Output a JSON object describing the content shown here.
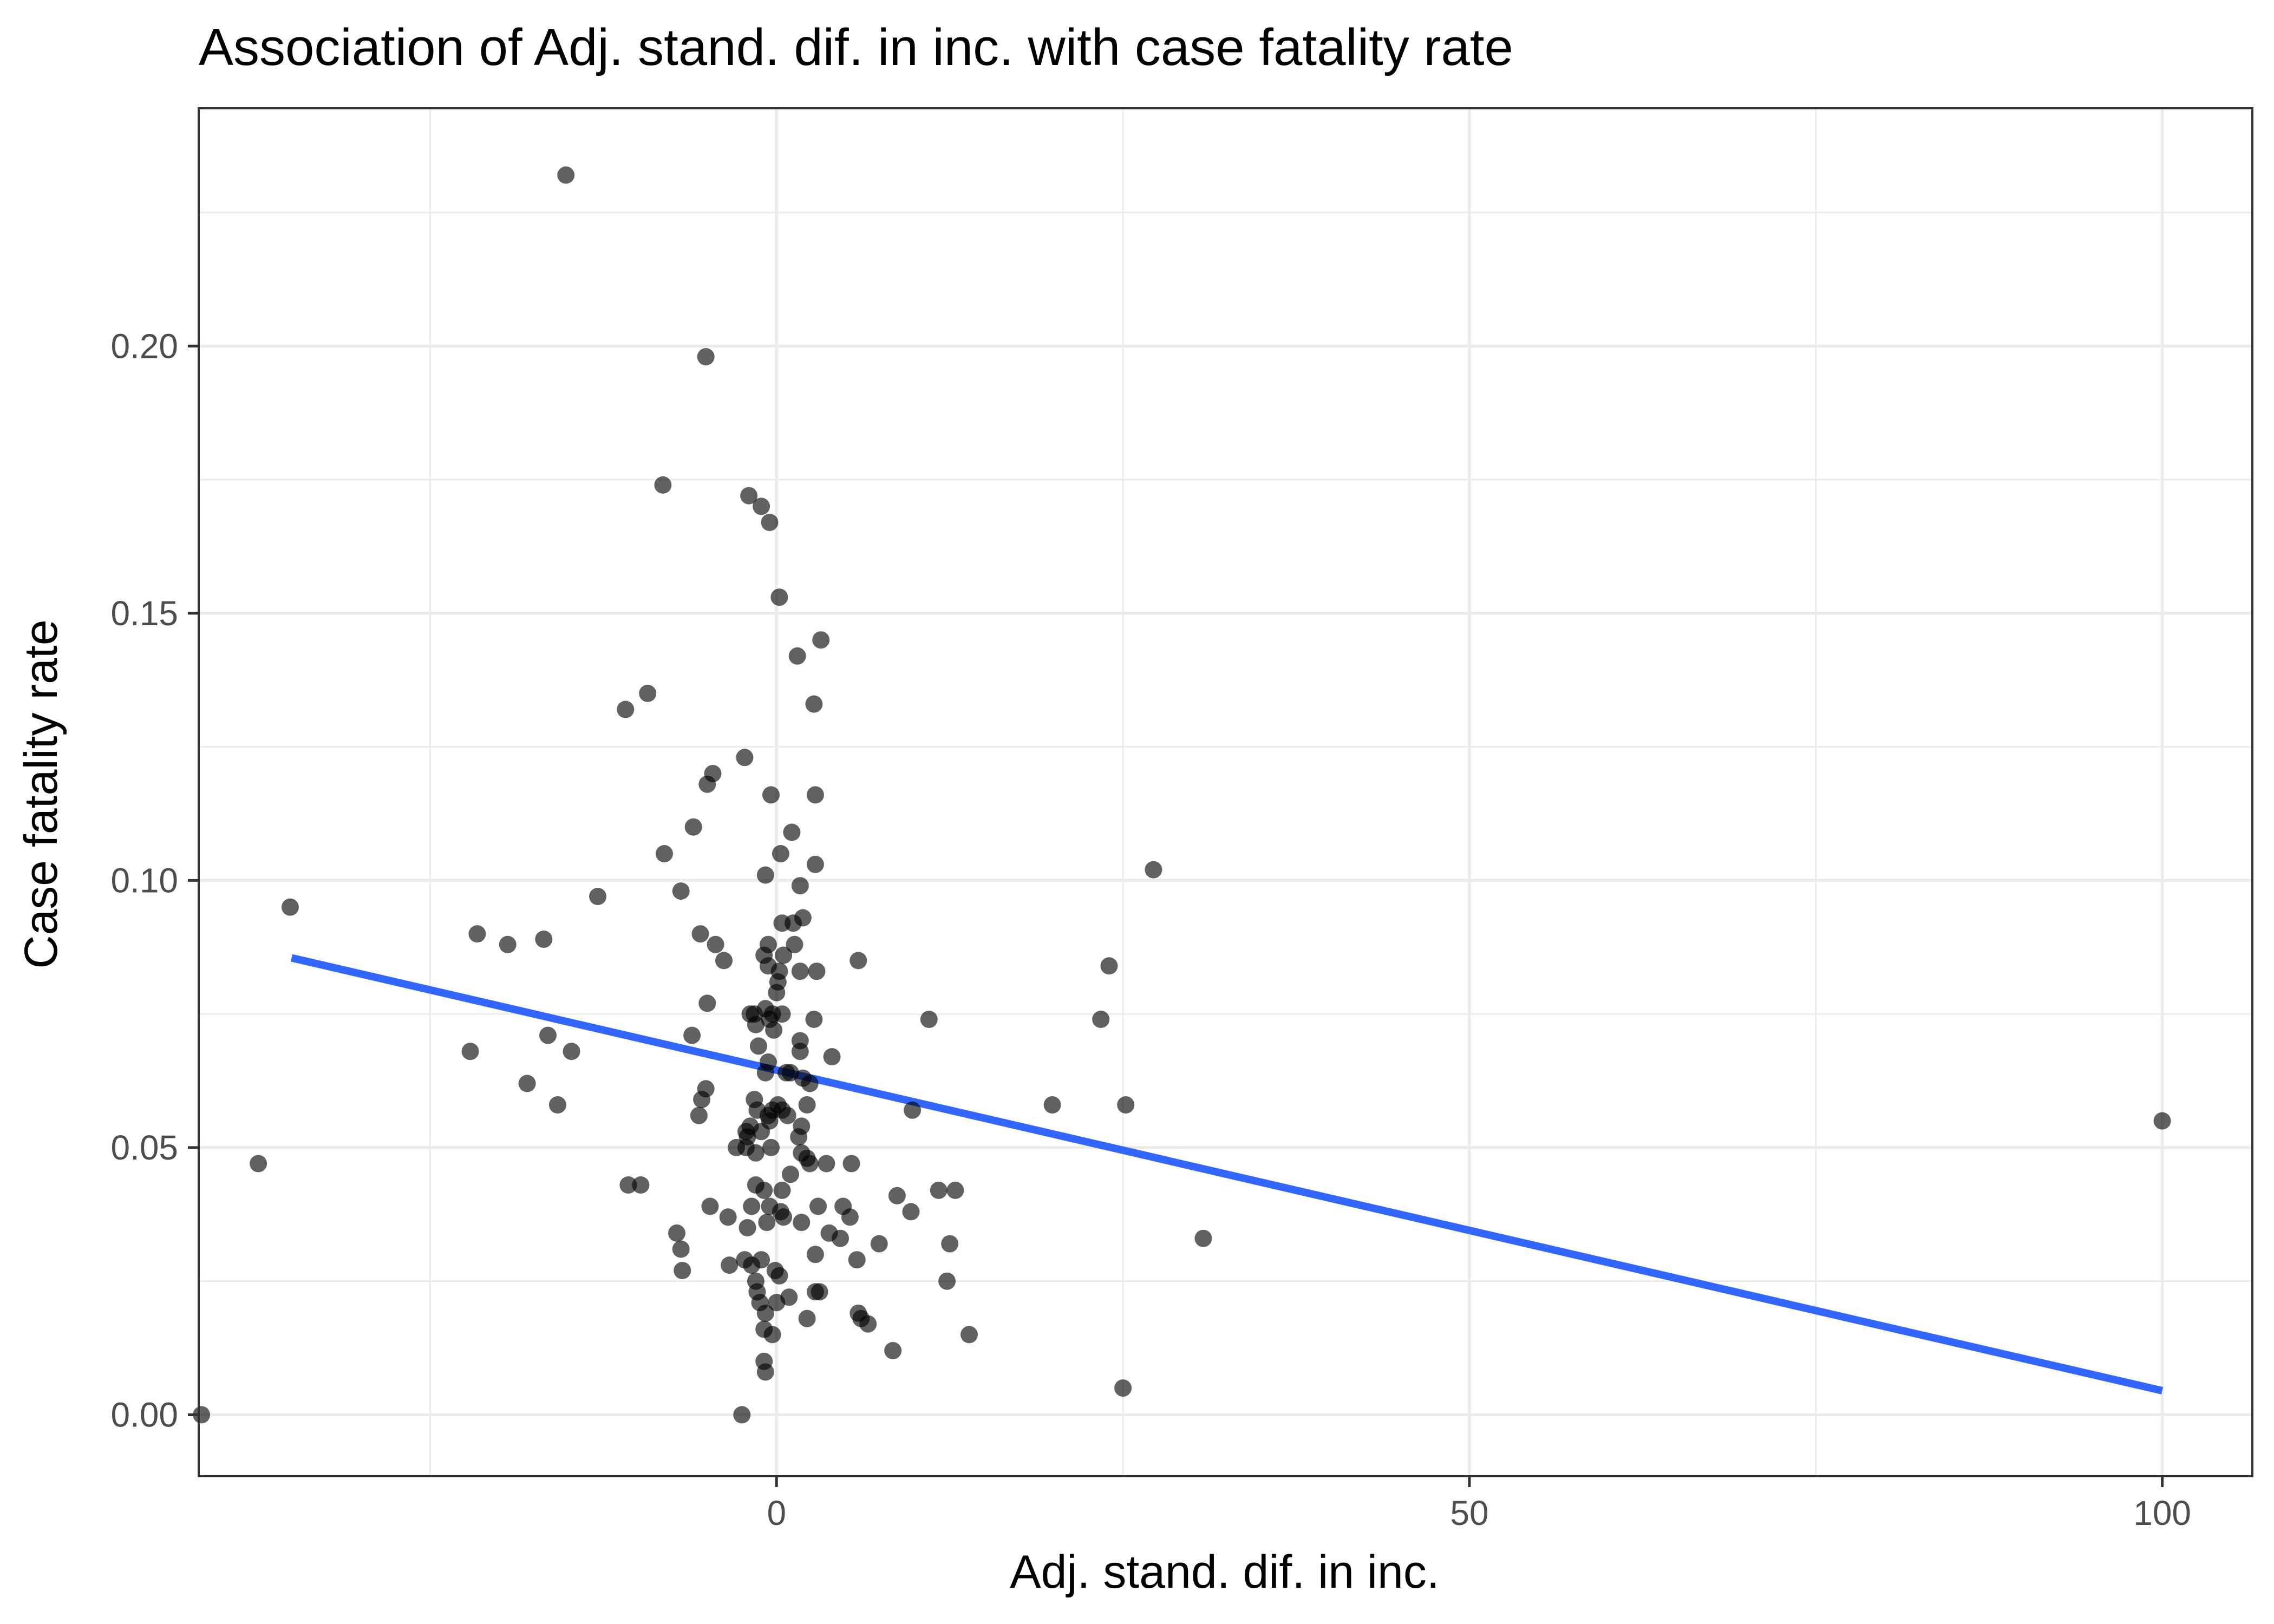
{
  "chart_data": {
    "type": "scatter",
    "title": "Association of Adj. stand. dif. in inc. with case fatality rate",
    "xlabel": "Adj. stand. dif. in inc.",
    "ylabel": "Case fatality rate",
    "xlim": [
      -41.7,
      106.5
    ],
    "ylim": [
      -0.0115,
      0.2445
    ],
    "x_ticks": [
      0,
      50,
      100
    ],
    "x_tick_labels": [
      "0",
      "50",
      "100"
    ],
    "x_minor_ticks": [
      -25,
      25,
      75
    ],
    "y_ticks": [
      0.0,
      0.05,
      0.1,
      0.15,
      0.2
    ],
    "y_tick_labels": [
      "0.00",
      "0.05",
      "0.10",
      "0.15",
      "0.20"
    ],
    "y_minor_ticks": [
      0.025,
      0.075,
      0.125,
      0.175,
      0.225
    ],
    "grid": true,
    "legend": "none",
    "point_color": "#000000",
    "point_opacity": 0.62,
    "fit_color": "#3366ff",
    "fit_line": {
      "x": [
        -35,
        100
      ],
      "y": [
        0.0855,
        0.0045
      ]
    },
    "points": [
      {
        "x": -15.2,
        "y": 0.232
      },
      {
        "x": -5.1,
        "y": 0.198
      },
      {
        "x": -8.2,
        "y": 0.174
      },
      {
        "x": -2,
        "y": 0.172
      },
      {
        "x": -1.1,
        "y": 0.17
      },
      {
        "x": -0.5,
        "y": 0.167
      },
      {
        "x": 0.2,
        "y": 0.153
      },
      {
        "x": 3.2,
        "y": 0.145
      },
      {
        "x": 1.5,
        "y": 0.142
      },
      {
        "x": -9.3,
        "y": 0.135
      },
      {
        "x": -10.9,
        "y": 0.132
      },
      {
        "x": 2.7,
        "y": 0.133
      },
      {
        "x": -2.3,
        "y": 0.123
      },
      {
        "x": -4.6,
        "y": 0.12
      },
      {
        "x": -5,
        "y": 0.118
      },
      {
        "x": -0.4,
        "y": 0.116
      },
      {
        "x": 2.8,
        "y": 0.116
      },
      {
        "x": -6,
        "y": 0.11
      },
      {
        "x": 1.1,
        "y": 0.109
      },
      {
        "x": -8.1,
        "y": 0.105
      },
      {
        "x": 0.3,
        "y": 0.105
      },
      {
        "x": 2.8,
        "y": 0.103
      },
      {
        "x": -0.8,
        "y": 0.101
      },
      {
        "x": 27.2,
        "y": 0.102
      },
      {
        "x": -12.9,
        "y": 0.097
      },
      {
        "x": -6.9,
        "y": 0.098
      },
      {
        "x": 1.7,
        "y": 0.099
      },
      {
        "x": -35.1,
        "y": 0.095
      },
      {
        "x": 1.9,
        "y": 0.093
      },
      {
        "x": 1.2,
        "y": 0.092
      },
      {
        "x": 0.4,
        "y": 0.092
      },
      {
        "x": -21.6,
        "y": 0.09
      },
      {
        "x": -5.5,
        "y": 0.09
      },
      {
        "x": -19.4,
        "y": 0.088
      },
      {
        "x": -16.8,
        "y": 0.089
      },
      {
        "x": -4.4,
        "y": 0.088
      },
      {
        "x": -0.6,
        "y": 0.088
      },
      {
        "x": 1.3,
        "y": 0.088
      },
      {
        "x": -0.9,
        "y": 0.086
      },
      {
        "x": 0.5,
        "y": 0.086
      },
      {
        "x": -3.8,
        "y": 0.085
      },
      {
        "x": 5.9,
        "y": 0.085
      },
      {
        "x": 24,
        "y": 0.084
      },
      {
        "x": -0.6,
        "y": 0.084
      },
      {
        "x": 0.2,
        "y": 0.083
      },
      {
        "x": 1.7,
        "y": 0.083
      },
      {
        "x": 2.9,
        "y": 0.083
      },
      {
        "x": 0.1,
        "y": 0.081
      },
      {
        "x": 0,
        "y": 0.079
      },
      {
        "x": -5,
        "y": 0.077
      },
      {
        "x": -0.8,
        "y": 0.076
      },
      {
        "x": -1.9,
        "y": 0.075
      },
      {
        "x": -1.6,
        "y": 0.075
      },
      {
        "x": -0.3,
        "y": 0.075
      },
      {
        "x": 0.4,
        "y": 0.075
      },
      {
        "x": -0.5,
        "y": 0.074
      },
      {
        "x": 2.7,
        "y": 0.074
      },
      {
        "x": 11,
        "y": 0.074
      },
      {
        "x": 23.4,
        "y": 0.074
      },
      {
        "x": -1.5,
        "y": 0.073
      },
      {
        "x": -0.2,
        "y": 0.072
      },
      {
        "x": -6.1,
        "y": 0.071
      },
      {
        "x": -16.5,
        "y": 0.071
      },
      {
        "x": 1.7,
        "y": 0.07
      },
      {
        "x": -1.3,
        "y": 0.069
      },
      {
        "x": -22.1,
        "y": 0.068
      },
      {
        "x": -14.8,
        "y": 0.068
      },
      {
        "x": 1.7,
        "y": 0.068
      },
      {
        "x": 4,
        "y": 0.067
      },
      {
        "x": -0.6,
        "y": 0.066
      },
      {
        "x": -0.8,
        "y": 0.064
      },
      {
        "x": 1,
        "y": 0.064
      },
      {
        "x": 0.7,
        "y": 0.064
      },
      {
        "x": 1.9,
        "y": 0.063
      },
      {
        "x": -18,
        "y": 0.062
      },
      {
        "x": 2.4,
        "y": 0.062
      },
      {
        "x": -5.1,
        "y": 0.061
      },
      {
        "x": -5.4,
        "y": 0.059
      },
      {
        "x": -1.6,
        "y": 0.059
      },
      {
        "x": 0.1,
        "y": 0.058
      },
      {
        "x": 2.2,
        "y": 0.058
      },
      {
        "x": 19.9,
        "y": 0.058
      },
      {
        "x": 25.2,
        "y": 0.058
      },
      {
        "x": -15.8,
        "y": 0.058
      },
      {
        "x": -1.4,
        "y": 0.057
      },
      {
        "x": -0.3,
        "y": 0.057
      },
      {
        "x": 0.4,
        "y": 0.057
      },
      {
        "x": 9.8,
        "y": 0.057
      },
      {
        "x": 100,
        "y": 0.055
      },
      {
        "x": -0.6,
        "y": 0.056
      },
      {
        "x": 0.8,
        "y": 0.056
      },
      {
        "x": -5.6,
        "y": 0.056
      },
      {
        "x": -0.5,
        "y": 0.055
      },
      {
        "x": -1.9,
        "y": 0.054
      },
      {
        "x": 1.8,
        "y": 0.054
      },
      {
        "x": -2.2,
        "y": 0.053
      },
      {
        "x": -1.1,
        "y": 0.053
      },
      {
        "x": 1.6,
        "y": 0.052
      },
      {
        "x": -2.1,
        "y": 0.052
      },
      {
        "x": -2.2,
        "y": 0.05
      },
      {
        "x": -2.9,
        "y": 0.05
      },
      {
        "x": -0.4,
        "y": 0.05
      },
      {
        "x": 1.8,
        "y": 0.049
      },
      {
        "x": -1.5,
        "y": 0.049
      },
      {
        "x": 2.2,
        "y": 0.048
      },
      {
        "x": 2.4,
        "y": 0.047
      },
      {
        "x": -37.4,
        "y": 0.047
      },
      {
        "x": 3.6,
        "y": 0.047
      },
      {
        "x": 5.4,
        "y": 0.047
      },
      {
        "x": 1,
        "y": 0.045
      },
      {
        "x": -10.7,
        "y": 0.043
      },
      {
        "x": -9.8,
        "y": 0.043
      },
      {
        "x": -1.5,
        "y": 0.043
      },
      {
        "x": -0.9,
        "y": 0.042
      },
      {
        "x": 0.4,
        "y": 0.042
      },
      {
        "x": 8.7,
        "y": 0.041
      },
      {
        "x": 11.7,
        "y": 0.042
      },
      {
        "x": 12.9,
        "y": 0.042
      },
      {
        "x": -4.8,
        "y": 0.039
      },
      {
        "x": -1.8,
        "y": 0.039
      },
      {
        "x": -0.5,
        "y": 0.039
      },
      {
        "x": 3,
        "y": 0.039
      },
      {
        "x": 4.8,
        "y": 0.039
      },
      {
        "x": 9.7,
        "y": 0.038
      },
      {
        "x": 0.3,
        "y": 0.038
      },
      {
        "x": 5.3,
        "y": 0.037
      },
      {
        "x": 0.5,
        "y": 0.037
      },
      {
        "x": -3.5,
        "y": 0.037
      },
      {
        "x": -0.7,
        "y": 0.036
      },
      {
        "x": 1.8,
        "y": 0.036
      },
      {
        "x": -2.1,
        "y": 0.035
      },
      {
        "x": 3.8,
        "y": 0.034
      },
      {
        "x": -7.2,
        "y": 0.034
      },
      {
        "x": 4.6,
        "y": 0.033
      },
      {
        "x": 7.4,
        "y": 0.032
      },
      {
        "x": 30.8,
        "y": 0.033
      },
      {
        "x": 12.5,
        "y": 0.032
      },
      {
        "x": -6.9,
        "y": 0.031
      },
      {
        "x": 2.8,
        "y": 0.03
      },
      {
        "x": -2.3,
        "y": 0.029
      },
      {
        "x": -1.1,
        "y": 0.029
      },
      {
        "x": -3.4,
        "y": 0.028
      },
      {
        "x": -1.8,
        "y": 0.028
      },
      {
        "x": 5.8,
        "y": 0.029
      },
      {
        "x": -6.8,
        "y": 0.027
      },
      {
        "x": -0.1,
        "y": 0.027
      },
      {
        "x": 0.2,
        "y": 0.026
      },
      {
        "x": 12.3,
        "y": 0.025
      },
      {
        "x": -1.5,
        "y": 0.025
      },
      {
        "x": 2.8,
        "y": 0.023
      },
      {
        "x": -1.4,
        "y": 0.023
      },
      {
        "x": 3.1,
        "y": 0.023
      },
      {
        "x": 0.9,
        "y": 0.022
      },
      {
        "x": -1.2,
        "y": 0.021
      },
      {
        "x": 0,
        "y": 0.021
      },
      {
        "x": -0.8,
        "y": 0.019
      },
      {
        "x": 5.9,
        "y": 0.019
      },
      {
        "x": 6.1,
        "y": 0.018
      },
      {
        "x": 2.2,
        "y": 0.018
      },
      {
        "x": 6.6,
        "y": 0.017
      },
      {
        "x": -0.9,
        "y": 0.016
      },
      {
        "x": -0.3,
        "y": 0.015
      },
      {
        "x": 13.9,
        "y": 0.015
      },
      {
        "x": 8.4,
        "y": 0.012
      },
      {
        "x": -0.9,
        "y": 0.01
      },
      {
        "x": -0.8,
        "y": 0.008
      },
      {
        "x": 25,
        "y": 0.005
      },
      {
        "x": -2.5,
        "y": 0
      },
      {
        "x": -41.5,
        "y": 0
      }
    ]
  }
}
